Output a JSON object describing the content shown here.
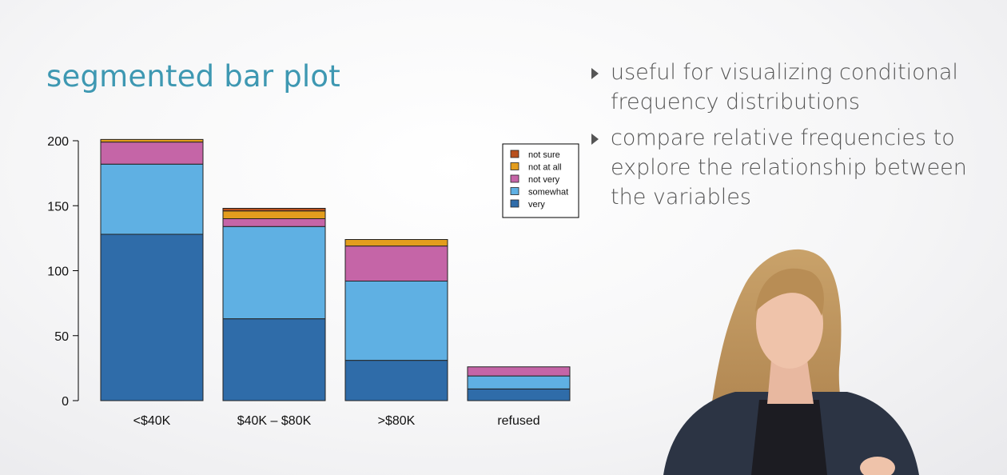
{
  "slide": {
    "title": "segmented bar plot",
    "bullets": [
      "useful for visualizing conditional frequency distributions",
      "compare relative frequencies to explore the relationship between the variables"
    ]
  },
  "chart_data": {
    "type": "bar",
    "stacked": true,
    "categories": [
      "<$40K",
      "$40K – $80K",
      ">$80K",
      "refused"
    ],
    "series": [
      {
        "name": "very",
        "color": "#2f6ca9",
        "values": [
          128,
          63,
          31,
          9
        ]
      },
      {
        "name": "somewhat",
        "color": "#5fb0e3",
        "values": [
          54,
          71,
          61,
          10
        ]
      },
      {
        "name": "not very",
        "color": "#c565a7",
        "values": [
          17,
          6,
          27,
          7
        ]
      },
      {
        "name": "not at all",
        "color": "#e39d1d",
        "values": [
          2,
          6,
          5,
          0
        ]
      },
      {
        "name": "not sure",
        "color": "#b8501d",
        "values": [
          0,
          2,
          0,
          0
        ]
      }
    ],
    "yticks": [
      0,
      50,
      100,
      150,
      200
    ],
    "ylim": [
      0,
      200
    ],
    "legend_position": "top-right",
    "legend_order": [
      "not sure",
      "not at all",
      "not very",
      "somewhat",
      "very"
    ],
    "grid": false
  }
}
